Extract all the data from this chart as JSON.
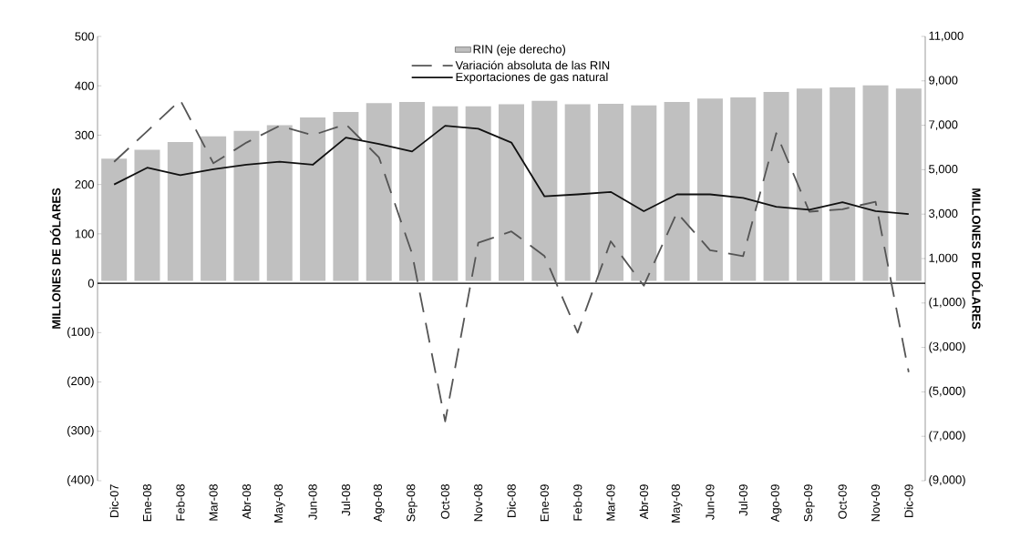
{
  "chart_data": {
    "type": "bar",
    "categories": [
      "Dic-07",
      "Ene-08",
      "Feb-08",
      "Mar-08",
      "Abr-08",
      "May-08",
      "Jun-08",
      "Jul-08",
      "Ago-08",
      "Sep-08",
      "Oct-08",
      "Nov-08",
      "Dic-08",
      "Ene-09",
      "Feb-09",
      "Mar-09",
      "Abr-09",
      "May-08",
      "Jun-09",
      "Jul-09",
      "Ago-09",
      "Sep-09",
      "Oct-09",
      "Nov-09",
      "Dic-09"
    ],
    "series": [
      {
        "name": "RIN (eje derecho)",
        "axis": "y2",
        "color": "#c0c0c0",
        "values": [
          5500,
          5900,
          6250,
          6500,
          6750,
          7000,
          7350,
          7600,
          8000,
          8050,
          7850,
          7850,
          7950,
          8100,
          7950,
          7970,
          7900,
          8050,
          8200,
          8250,
          8500,
          8650,
          8700,
          8800,
          8650
        ]
      },
      {
        "name": "Variación absoluta de las RIN",
        "type": "line",
        "line_style": "dashed",
        "color": "#555555",
        "values": [
          246,
          308,
          371,
          243,
          285,
          319,
          300,
          322,
          255,
          60,
          -280,
          82,
          105,
          55,
          -100,
          85,
          -5,
          143,
          67,
          55,
          304,
          145,
          150,
          165,
          -180
        ]
      },
      {
        "name": "Exportaciones de gas natural",
        "type": "line",
        "line_style": "solid",
        "color": "#111111",
        "values": [
          200,
          234,
          219,
          231,
          240,
          246,
          240,
          295,
          282,
          267,
          319,
          313,
          285,
          176,
          180,
          185,
          146,
          180,
          180,
          173,
          155,
          149,
          164,
          146,
          140
        ]
      }
    ],
    "ylabel": "MILLONES DE DÓLARES",
    "y2label": "MILLONES DE DÓLARES",
    "ylim": [
      -400,
      500
    ],
    "yticks": [
      {
        "value": -400,
        "label": "(400)"
      },
      {
        "value": -300,
        "label": "(300)"
      },
      {
        "value": -200,
        "label": "(200)"
      },
      {
        "value": -100,
        "label": "(100)"
      },
      0,
      100,
      200,
      300,
      400,
      500
    ],
    "y2lim": [
      -9000,
      11000
    ],
    "y2ticks": [
      {
        "value": -9000,
        "label": "(9,000)"
      },
      {
        "value": -7000,
        "label": "(7,000)"
      },
      {
        "value": -5000,
        "label": "(5,000)"
      },
      {
        "value": -3000,
        "label": "(3,000)"
      },
      {
        "value": -1000,
        "label": "(1,000)"
      },
      {
        "value": 1000,
        "label": "1,000"
      },
      {
        "value": 3000,
        "label": "3,000"
      },
      {
        "value": 5000,
        "label": "5,000"
      },
      {
        "value": 7000,
        "label": "7,000"
      },
      {
        "value": 9000,
        "label": "9,000"
      },
      {
        "value": 11000,
        "label": "11,000"
      }
    ],
    "legend": "top"
  }
}
